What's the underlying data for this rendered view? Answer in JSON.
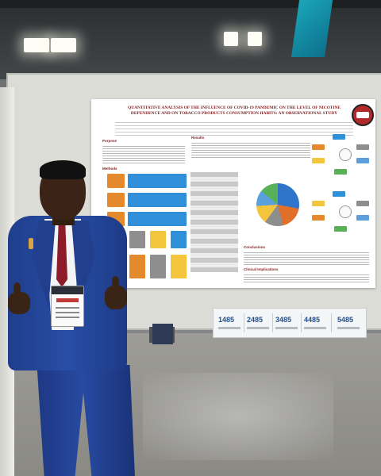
{
  "scene": {
    "description_visible": false
  },
  "poster": {
    "title": "QUANTITATIVE ANALYSIS OF THE INFLUENCE OF COVID-19 PANDEMIC ON THE LEVEL OF NICOTINE DEPENDENCE AND ON TOBACCO PRODUCTS CONSUMPTION HABITS: AN OBSERVATIONAL STUDY",
    "sections": {
      "purpose": "Purpose",
      "methods": "Methods",
      "results": "Results",
      "conclusions": "Conclusions",
      "implications": "Clinical Implications"
    }
  },
  "booth_sign": {
    "numbers": [
      "1485",
      "2485",
      "3485",
      "4485",
      "5485"
    ]
  },
  "colors": {
    "poster_heading": "#8a2222",
    "jacket": "#284ea6",
    "tie": "#8e1b2a",
    "sign_number": "#1f4f8a"
  }
}
